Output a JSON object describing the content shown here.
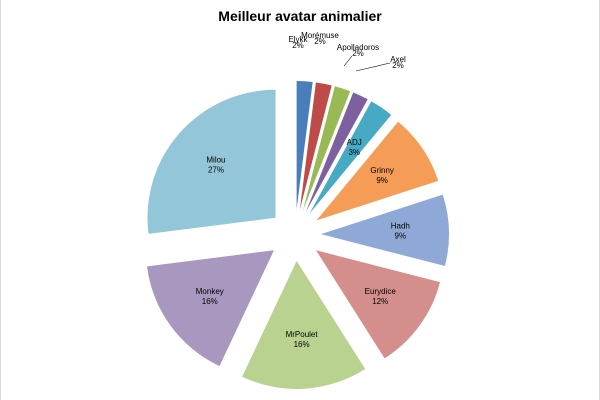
{
  "chart_data": {
    "type": "pie",
    "title": "Meilleur avatar animalier",
    "explode": true,
    "slices": [
      {
        "name": "Elykk",
        "pct_label": "2%",
        "value": 2,
        "color": "#4a7ebb"
      },
      {
        "name": "Morémuse",
        "pct_label": "2%",
        "value": 2,
        "color": "#be4b48"
      },
      {
        "name": "Apolladoros",
        "pct_label": "2%",
        "value": 2,
        "color": "#98b954"
      },
      {
        "name": "Axel",
        "pct_label": "2%",
        "value": 2,
        "color": "#7d60a0"
      },
      {
        "name": "ADJ",
        "pct_label": "3%",
        "value": 3,
        "color": "#46aac5"
      },
      {
        "name": "Grinny",
        "pct_label": "9%",
        "value": 9,
        "color": "#f59d56"
      },
      {
        "name": "Hadh",
        "pct_label": "9%",
        "value": 9,
        "color": "#8fa9d6"
      },
      {
        "name": "Eurydice",
        "pct_label": "12%",
        "value": 12,
        "color": "#d48e8c"
      },
      {
        "name": "MrPoulet",
        "pct_label": "16%",
        "value": 16,
        "color": "#b9d28f"
      },
      {
        "name": "Monkey",
        "pct_label": "16%",
        "value": 16,
        "color": "#a898c0"
      },
      {
        "name": "Milou",
        "pct_label": "27%",
        "value": 27,
        "color": "#93c6d8"
      }
    ]
  }
}
